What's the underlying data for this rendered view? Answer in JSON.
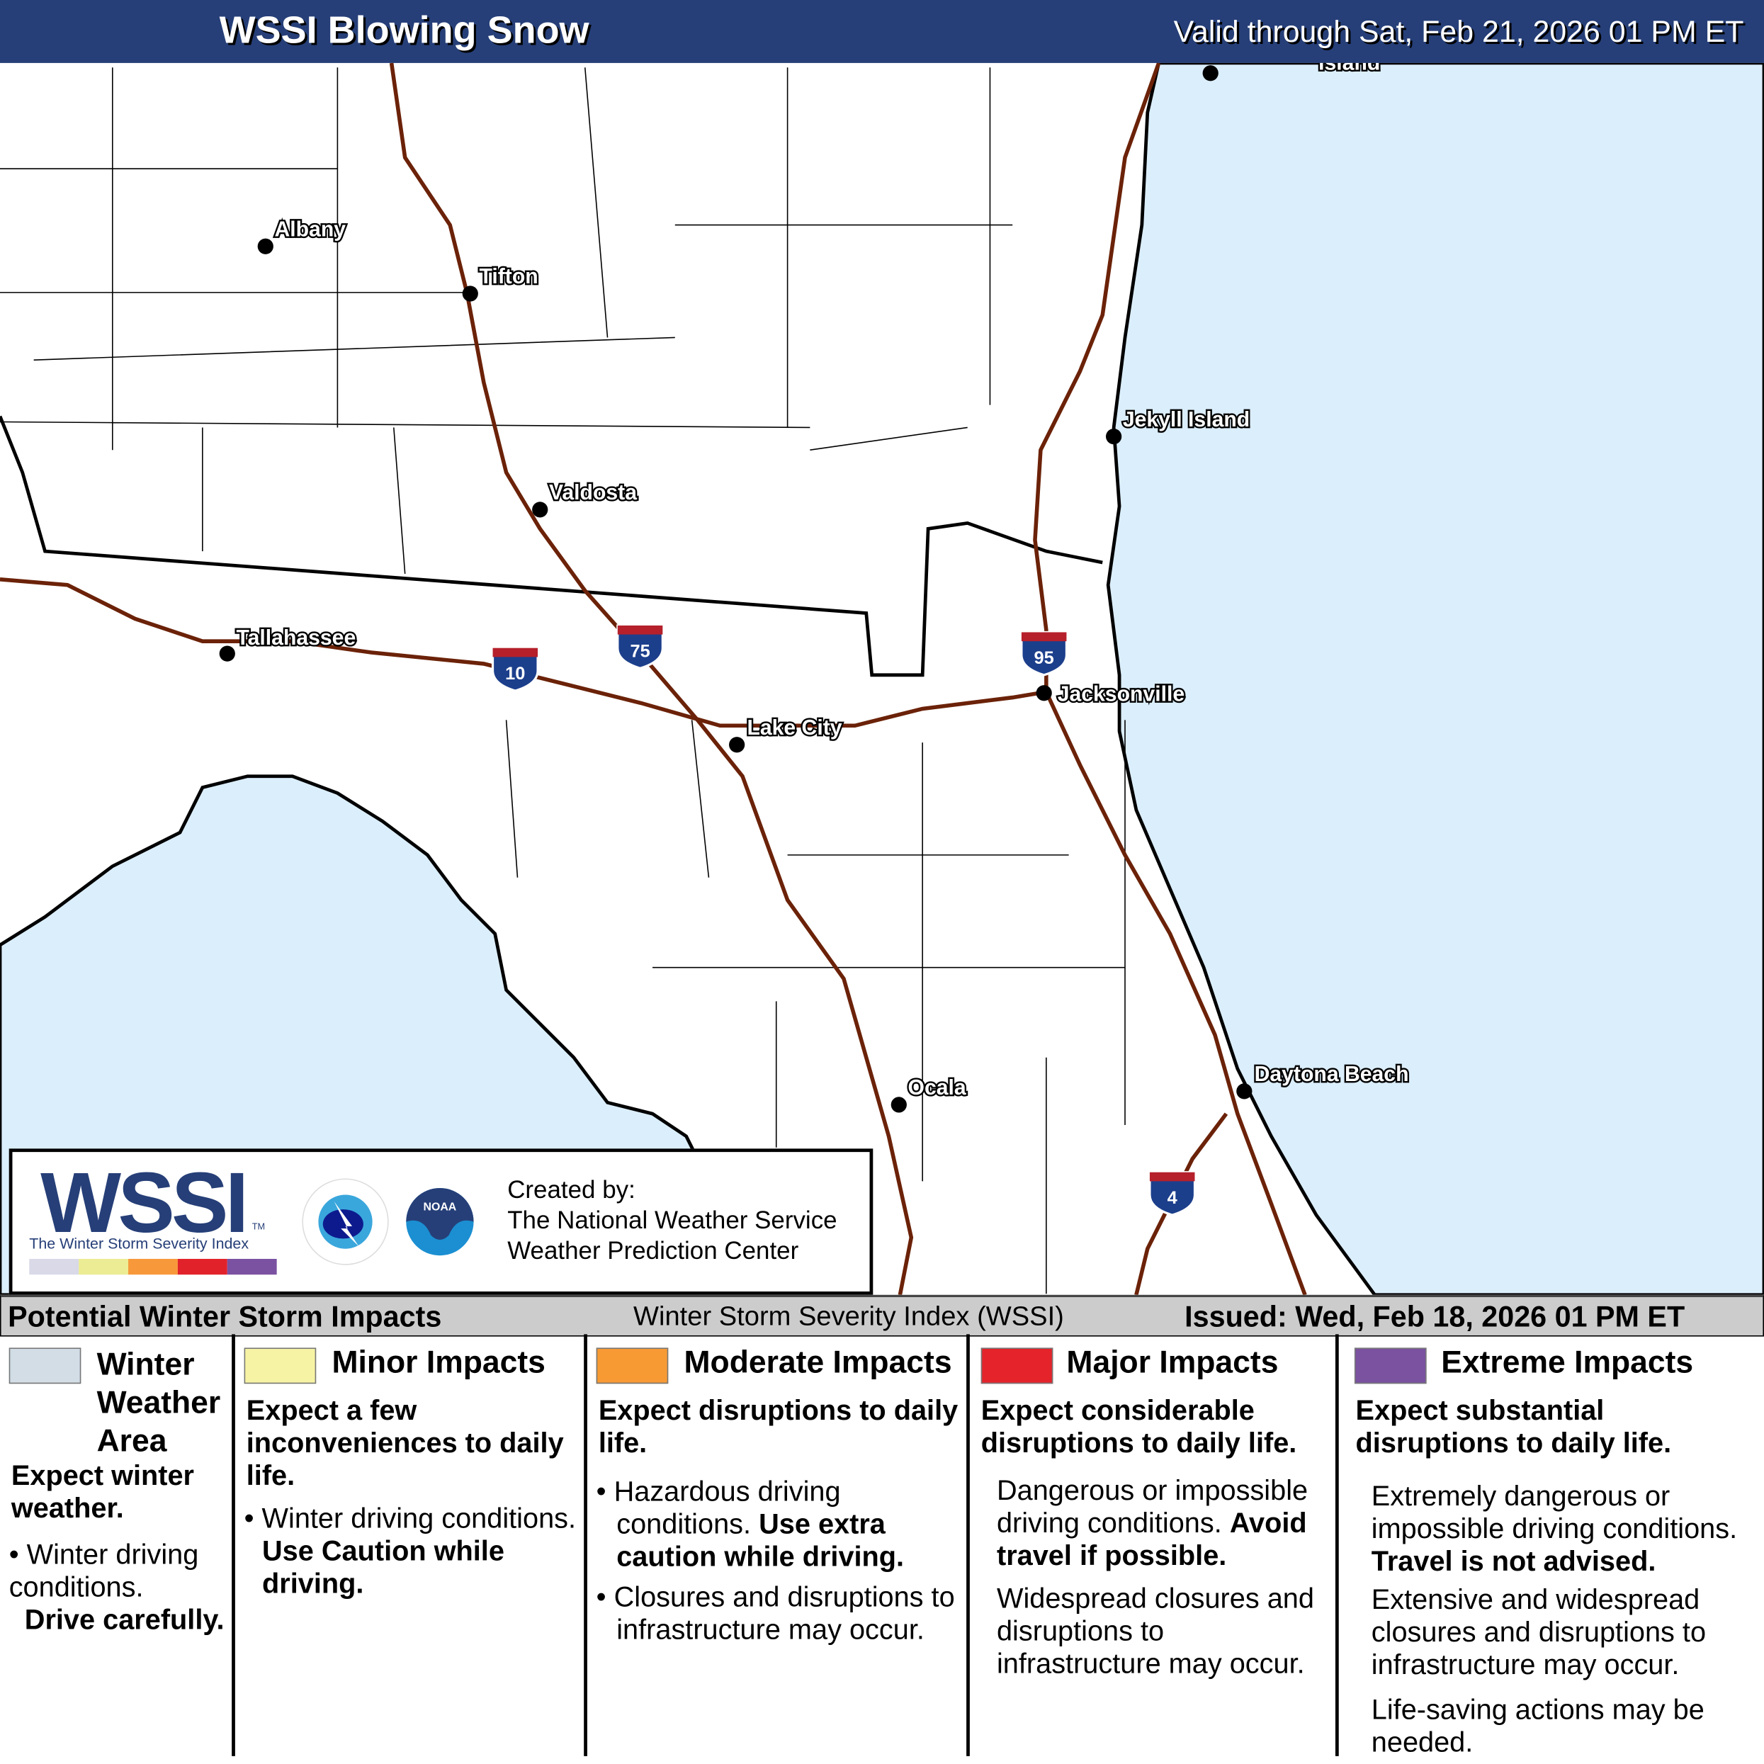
{
  "header": {
    "title": "WSSI Blowing Snow",
    "valid": "Valid through Sat, Feb 21, 2026 01 PM ET"
  },
  "map": {
    "land_color": "#ffffff",
    "water_color": "#dbeefc",
    "highway_color": "#6b2208",
    "cities": [
      {
        "name": "Albany"
      },
      {
        "name": "Tifton"
      },
      {
        "name": "Valdosta"
      },
      {
        "name": "Tallahassee"
      },
      {
        "name": "Lake City"
      },
      {
        "name": "Jacksonville"
      },
      {
        "name": "Jekyll Island"
      },
      {
        "name": "Ocala"
      },
      {
        "name": "Daytona Beach"
      },
      {
        "name": "Island"
      }
    ],
    "interstates": [
      "10",
      "75",
      "95",
      "4"
    ]
  },
  "logo": {
    "wssi": "WSSI",
    "tm": "TM",
    "subtitle": "The Winter Storm Severity Index",
    "created_by": "Created by:",
    "org1": "The National Weather Service",
    "org2": "Weather Prediction Center",
    "scale_colors": [
      "#d9d9e8",
      "#ecec94",
      "#f7993a",
      "#e2222a",
      "#7b52a1"
    ]
  },
  "bar": {
    "left": "Potential Winter Storm Impacts",
    "center": "Winter Storm Severity Index (WSSI)",
    "right": "Issued: Wed, Feb 18, 2026 01 PM ET"
  },
  "legend": [
    {
      "title": "Winter Weather Area",
      "color": "#d2dde6",
      "head": "Expect winter weather.",
      "b1": "Winter driving conditions.",
      "b1b": "Drive carefully."
    },
    {
      "title": "Minor Impacts",
      "color": "#f6f3a4",
      "head": "Expect a few inconveniences to daily life.",
      "b1": "Winter driving conditions.",
      "b1b": "Use Caution while driving."
    },
    {
      "title": "Moderate Impacts",
      "color": "#f79a34",
      "head": "Expect disruptions to daily life.",
      "b1": "Hazardous driving conditions.",
      "b1b": "Use extra caution while driving.",
      "b2": "Closures and disruptions to infrastructure may occur."
    },
    {
      "title": "Major Impacts",
      "color": "#e4232b",
      "head": "Expect considerable disruptions to daily life.",
      "b1": "Dangerous or impossible driving conditions.",
      "b1b": "Avoid travel if possible.",
      "b2": "Widespread closures and disruptions to infrastructure may occur."
    },
    {
      "title": "Extreme Impacts",
      "color": "#7a52a0",
      "head": "Expect substantial disruptions to daily life.",
      "b1": "Extremely dangerous or impossible driving conditions.",
      "b1b": "Travel is not advised.",
      "b2": "Extensive and widespread closures and disruptions to infrastructure may occur.",
      "b3": "Life-saving actions may be needed."
    }
  ]
}
